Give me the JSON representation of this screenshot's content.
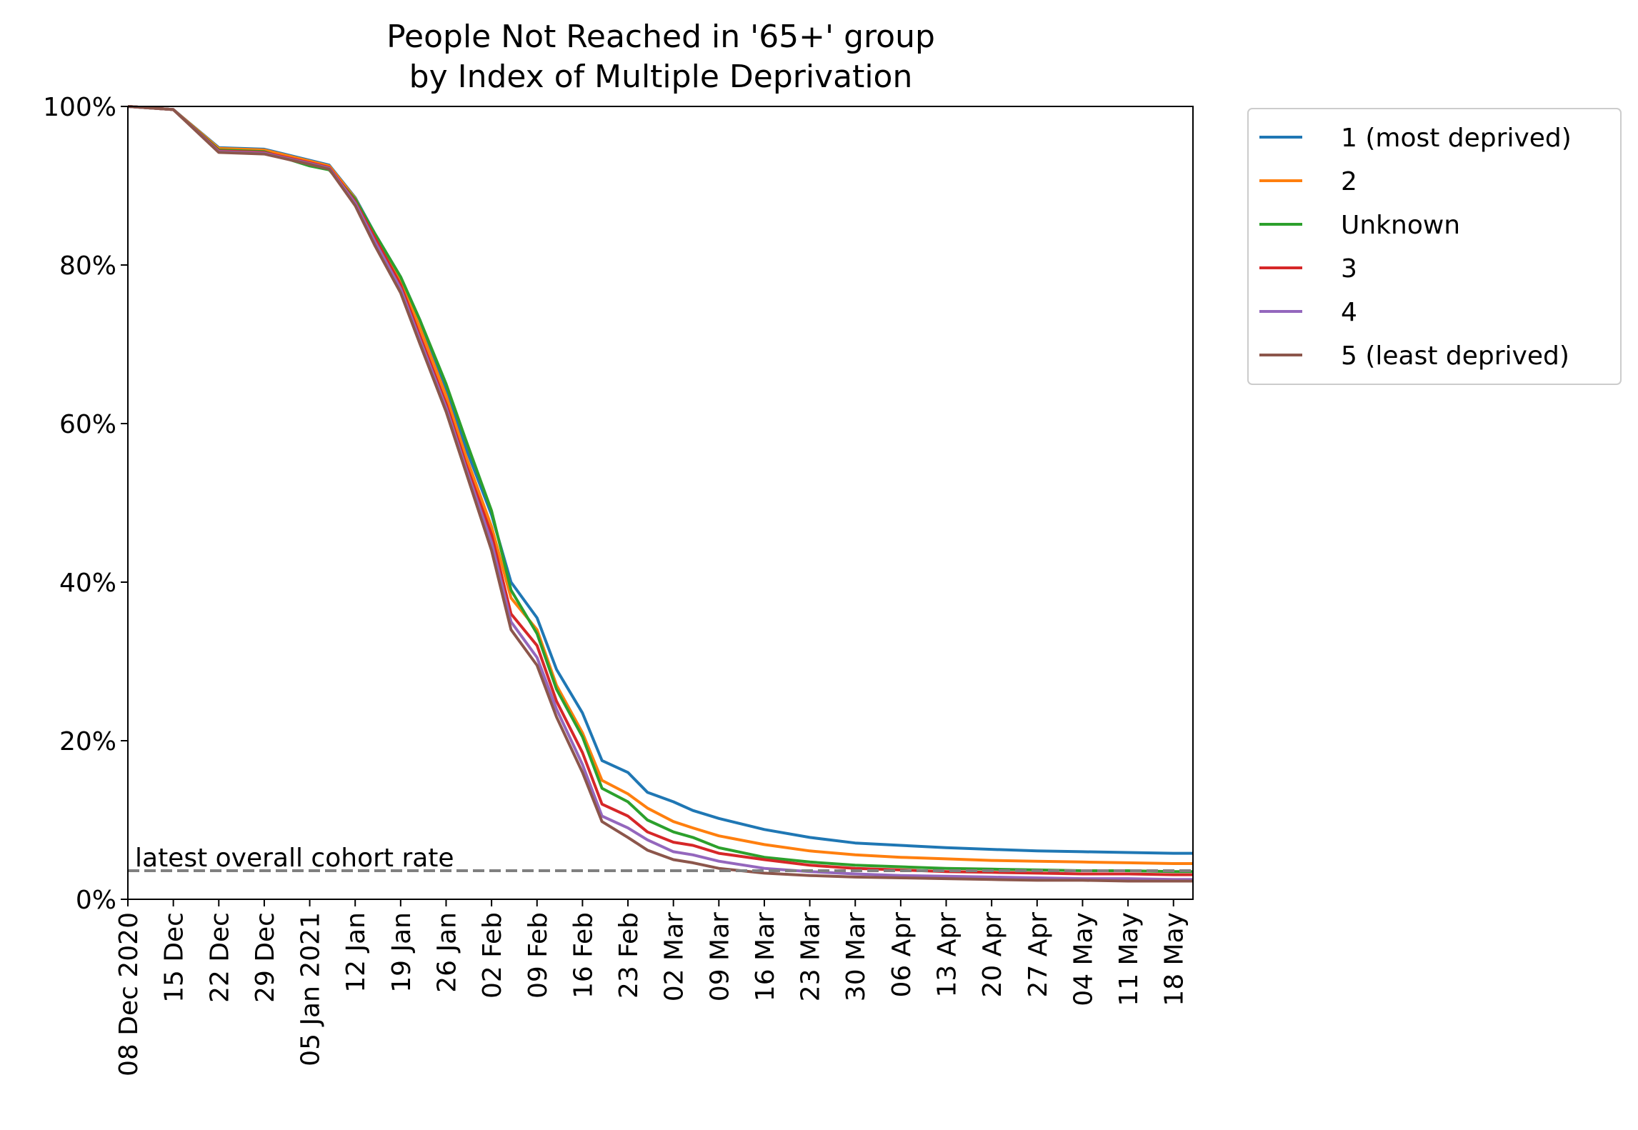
{
  "chart_data": {
    "type": "line",
    "title": [
      "People Not Reached in '65+' group",
      "by Index of Multiple Deprivation"
    ],
    "xlabel": "",
    "ylabel": "",
    "x_axis": {
      "min": "2020-12-08",
      "max": "2021-05-21",
      "ticks": [
        {
          "date": "2020-12-08",
          "label": "08 Dec 2020"
        },
        {
          "date": "2020-12-15",
          "label": "15 Dec"
        },
        {
          "date": "2020-12-22",
          "label": "22 Dec"
        },
        {
          "date": "2020-12-29",
          "label": "29 Dec"
        },
        {
          "date": "2021-01-05",
          "label": "05 Jan 2021"
        },
        {
          "date": "2021-01-12",
          "label": "12 Jan"
        },
        {
          "date": "2021-01-19",
          "label": "19 Jan"
        },
        {
          "date": "2021-01-26",
          "label": "26 Jan"
        },
        {
          "date": "2021-02-02",
          "label": "02 Feb"
        },
        {
          "date": "2021-02-09",
          "label": "09 Feb"
        },
        {
          "date": "2021-02-16",
          "label": "16 Feb"
        },
        {
          "date": "2021-02-23",
          "label": "23 Feb"
        },
        {
          "date": "2021-03-02",
          "label": "02 Mar"
        },
        {
          "date": "2021-03-09",
          "label": "09 Mar"
        },
        {
          "date": "2021-03-16",
          "label": "16 Mar"
        },
        {
          "date": "2021-03-23",
          "label": "23 Mar"
        },
        {
          "date": "2021-03-30",
          "label": "30 Mar"
        },
        {
          "date": "2021-04-06",
          "label": "06 Apr"
        },
        {
          "date": "2021-04-13",
          "label": "13 Apr"
        },
        {
          "date": "2021-04-20",
          "label": "20 Apr"
        },
        {
          "date": "2021-04-27",
          "label": "27 Apr"
        },
        {
          "date": "2021-05-04",
          "label": "04 May"
        },
        {
          "date": "2021-05-11",
          "label": "11 May"
        },
        {
          "date": "2021-05-18",
          "label": "18 May"
        }
      ]
    },
    "y_axis": {
      "min": 0,
      "max": 100,
      "ticks": [
        {
          "value": 0,
          "label": "0%"
        },
        {
          "value": 20,
          "label": "20%"
        },
        {
          "value": 40,
          "label": "40%"
        },
        {
          "value": 60,
          "label": "60%"
        },
        {
          "value": 80,
          "label": "80%"
        },
        {
          "value": 100,
          "label": "100%"
        }
      ]
    },
    "grid": false,
    "legend_position": "outside-right",
    "x": [
      "2020-12-08",
      "2020-12-15",
      "2020-12-22",
      "2020-12-29",
      "2021-01-05",
      "2021-01-08",
      "2021-01-12",
      "2021-01-15",
      "2021-01-19",
      "2021-01-22",
      "2021-01-26",
      "2021-01-29",
      "2021-02-02",
      "2021-02-05",
      "2021-02-09",
      "2021-02-12",
      "2021-02-16",
      "2021-02-19",
      "2021-02-23",
      "2021-02-26",
      "2021-03-02",
      "2021-03-05",
      "2021-03-09",
      "2021-03-16",
      "2021-03-23",
      "2021-03-30",
      "2021-04-06",
      "2021-04-13",
      "2021-04-20",
      "2021-04-27",
      "2021-05-04",
      "2021-05-11",
      "2021-05-18",
      "2021-05-21"
    ],
    "series": [
      {
        "name": "1 (most deprived)",
        "color": "#1f77b4",
        "values": [
          100,
          99.6,
          94.8,
          94.6,
          93.2,
          92.6,
          88.5,
          84.0,
          78.5,
          73.0,
          64.0,
          57.0,
          48.5,
          40.0,
          35.5,
          29.0,
          23.5,
          17.5,
          16.0,
          13.5,
          12.3,
          11.2,
          10.2,
          8.8,
          7.8,
          7.1,
          6.8,
          6.5,
          6.3,
          6.1,
          6.0,
          5.9,
          5.8,
          5.8
        ]
      },
      {
        "name": "2",
        "color": "#ff7f0e",
        "values": [
          100,
          99.6,
          94.7,
          94.5,
          93.1,
          92.5,
          88.4,
          83.8,
          78.0,
          72.0,
          63.5,
          56.0,
          47.0,
          38.0,
          34.0,
          27.0,
          21.0,
          15.0,
          13.3,
          11.5,
          9.8,
          9.0,
          8.0,
          6.9,
          6.1,
          5.6,
          5.3,
          5.1,
          4.9,
          4.8,
          4.7,
          4.6,
          4.5,
          4.5
        ]
      },
      {
        "name": "Unknown",
        "color": "#2ca02c",
        "values": [
          100,
          99.6,
          94.5,
          94.3,
          92.5,
          92.0,
          88.3,
          84.0,
          78.5,
          73.0,
          65.0,
          58.0,
          49.0,
          39.0,
          33.5,
          26.5,
          20.5,
          14.0,
          12.3,
          10.0,
          8.5,
          7.8,
          6.5,
          5.3,
          4.7,
          4.3,
          4.1,
          3.9,
          3.8,
          3.7,
          3.6,
          3.6,
          3.5,
          3.5
        ]
      },
      {
        "name": "3",
        "color": "#d62728",
        "values": [
          100,
          99.6,
          94.4,
          94.2,
          92.9,
          92.3,
          88.0,
          83.5,
          77.5,
          71.0,
          62.5,
          55.0,
          46.0,
          36.0,
          32.0,
          25.0,
          18.5,
          12.0,
          10.5,
          8.5,
          7.2,
          6.8,
          5.8,
          5.0,
          4.3,
          3.9,
          3.7,
          3.5,
          3.4,
          3.3,
          3.2,
          3.2,
          3.1,
          3.1
        ]
      },
      {
        "name": "4",
        "color": "#9467bd",
        "values": [
          100,
          99.6,
          94.3,
          94.1,
          92.8,
          92.2,
          87.8,
          83.0,
          77.0,
          70.5,
          62.0,
          54.5,
          45.0,
          35.0,
          30.5,
          24.0,
          17.0,
          10.5,
          9.0,
          7.5,
          6.0,
          5.6,
          4.8,
          3.9,
          3.5,
          3.2,
          3.0,
          2.9,
          2.8,
          2.7,
          2.6,
          2.6,
          2.5,
          2.5
        ]
      },
      {
        "name": "5 (least deprived)",
        "color": "#8c564b",
        "values": [
          100,
          99.6,
          94.2,
          94.0,
          92.7,
          92.1,
          87.5,
          82.5,
          76.5,
          70.0,
          61.5,
          54.0,
          44.0,
          34.0,
          29.5,
          23.0,
          16.0,
          9.8,
          7.8,
          6.2,
          5.0,
          4.6,
          3.9,
          3.3,
          3.0,
          2.8,
          2.7,
          2.6,
          2.5,
          2.4,
          2.4,
          2.3,
          2.3,
          2.3
        ]
      }
    ],
    "reference_line": {
      "value": 3.6,
      "label": "latest overall cohort rate",
      "color": "#808080",
      "style": "dashed"
    }
  }
}
